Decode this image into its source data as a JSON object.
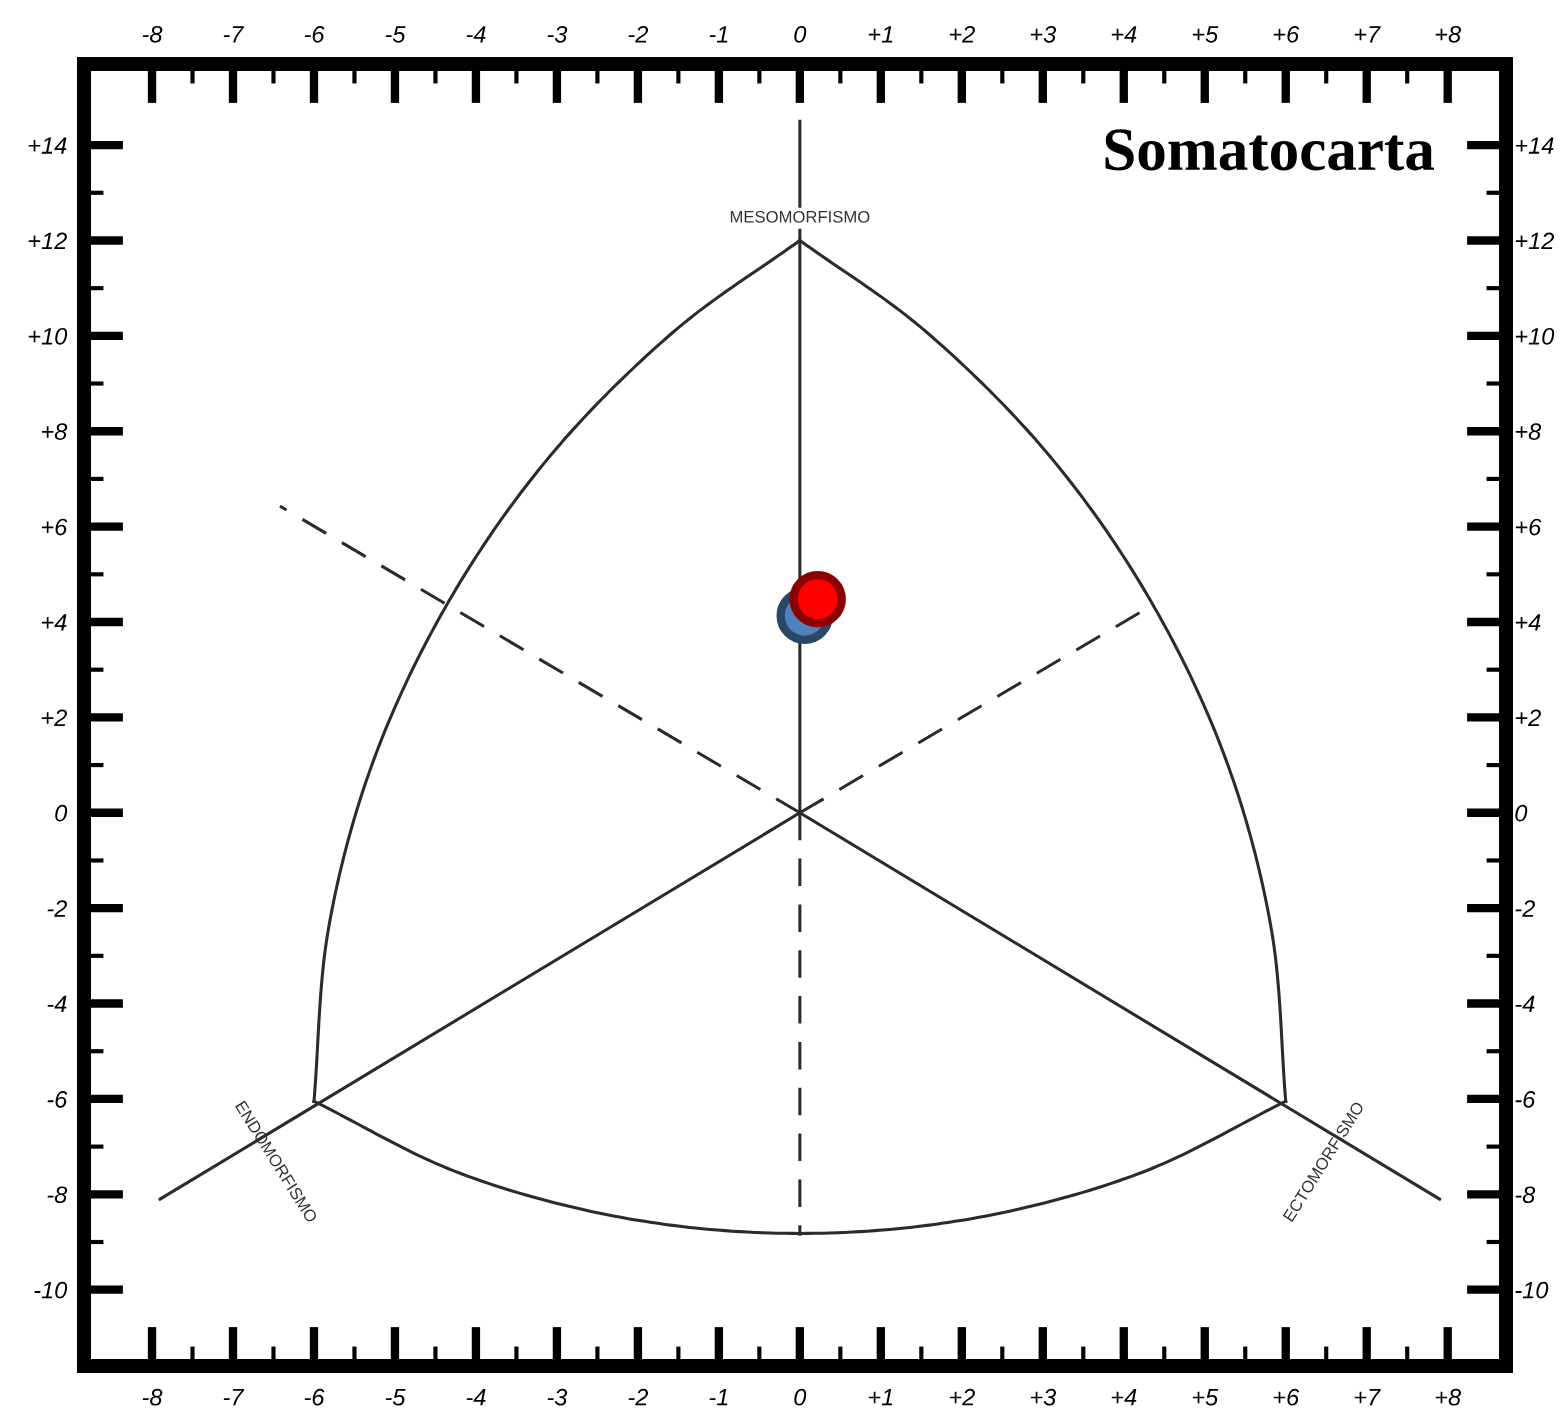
{
  "chart_data": {
    "type": "scatter",
    "title": "Somatocarta",
    "xlim": [
      -8.84,
      8.72
    ],
    "ylim": [
      -11.6,
      15.7
    ],
    "x2lim": [
      -8.84,
      8.72
    ],
    "y2lim": [
      -11.6,
      15.7
    ],
    "xticks": [
      {
        "value": -8,
        "label": "-8"
      },
      {
        "value": -7.5,
        "label": null
      },
      {
        "value": -7,
        "label": "-7"
      },
      {
        "value": -6.5,
        "label": null
      },
      {
        "value": -6,
        "label": "-6"
      },
      {
        "value": -5.5,
        "label": null
      },
      {
        "value": -5,
        "label": "-5"
      },
      {
        "value": -4.5,
        "label": null
      },
      {
        "value": -4,
        "label": "-4"
      },
      {
        "value": -3.5,
        "label": null
      },
      {
        "value": -3,
        "label": "-3"
      },
      {
        "value": -2.5,
        "label": null
      },
      {
        "value": -2,
        "label": "-2"
      },
      {
        "value": -1.5,
        "label": null
      },
      {
        "value": -1,
        "label": "-1"
      },
      {
        "value": -0.5,
        "label": null
      },
      0,
      {
        "value": 0.5,
        "label": null
      },
      {
        "value": 1,
        "label": "+1"
      },
      {
        "value": 1.5,
        "label": null
      },
      {
        "value": 2,
        "label": "+2"
      },
      {
        "value": 2.5,
        "label": null
      },
      {
        "value": 3,
        "label": "+3"
      },
      {
        "value": 3.5,
        "label": null
      },
      {
        "value": 4,
        "label": "+4"
      },
      {
        "value": 4.5,
        "label": null
      },
      {
        "value": 5,
        "label": "+5"
      },
      {
        "value": 5.5,
        "label": null
      },
      {
        "value": 6,
        "label": "+6"
      },
      {
        "value": 6.5,
        "label": null
      },
      {
        "value": 7,
        "label": "+7"
      },
      {
        "value": 7.5,
        "label": null
      },
      {
        "value": 8,
        "label": "+8"
      }
    ],
    "x2ticks": [
      {
        "value": -8,
        "label": "-8"
      },
      {
        "value": -7.5,
        "label": null
      },
      {
        "value": -7,
        "label": "-7"
      },
      {
        "value": -6.5,
        "label": null
      },
      {
        "value": -6,
        "label": "-6"
      },
      {
        "value": -5.5,
        "label": null
      },
      {
        "value": -5,
        "label": "-5"
      },
      {
        "value": -4.5,
        "label": null
      },
      {
        "value": -4,
        "label": "-4"
      },
      {
        "value": -3.5,
        "label": null
      },
      {
        "value": -3,
        "label": "-3"
      },
      {
        "value": -2.5,
        "label": null
      },
      {
        "value": -2,
        "label": "-2"
      },
      {
        "value": -1.5,
        "label": null
      },
      {
        "value": -1,
        "label": "-1"
      },
      {
        "value": -0.5,
        "label": null
      },
      0,
      {
        "value": 0.5,
        "label": null
      },
      {
        "value": 1,
        "label": "+1"
      },
      {
        "value": 1.5,
        "label": null
      },
      {
        "value": 2,
        "label": "+2"
      },
      {
        "value": 2.5,
        "label": null
      },
      {
        "value": 3,
        "label": "+3"
      },
      {
        "value": 3.5,
        "label": null
      },
      {
        "value": 4,
        "label": "+4"
      },
      {
        "value": 4.5,
        "label": null
      },
      {
        "value": 5,
        "label": "+5"
      },
      {
        "value": 5.5,
        "label": null
      },
      {
        "value": 6,
        "label": "+6"
      },
      {
        "value": 6.5,
        "label": null
      },
      {
        "value": 7,
        "label": "+7"
      },
      {
        "value": 7.5,
        "label": null
      },
      {
        "value": 8,
        "label": "+8"
      }
    ],
    "yticks": [
      {
        "value": -10,
        "label": "-10"
      },
      {
        "value": -9,
        "label": null
      },
      {
        "value": -8,
        "label": "-8"
      },
      {
        "value": -7,
        "label": null
      },
      {
        "value": -6,
        "label": "-6"
      },
      {
        "value": -5,
        "label": null
      },
      {
        "value": -4,
        "label": "-4"
      },
      {
        "value": -3,
        "label": null
      },
      {
        "value": -2,
        "label": "-2"
      },
      {
        "value": -1,
        "label": null
      },
      0,
      {
        "value": 1,
        "label": null
      },
      {
        "value": 2,
        "label": "+2"
      },
      {
        "value": 3,
        "label": null
      },
      {
        "value": 4,
        "label": "+4"
      },
      {
        "value": 5,
        "label": null
      },
      {
        "value": 6,
        "label": "+6"
      },
      {
        "value": 7,
        "label": null
      },
      {
        "value": 8,
        "label": "+8"
      },
      {
        "value": 9,
        "label": null
      },
      {
        "value": 10,
        "label": "+10"
      },
      {
        "value": 11,
        "label": null
      },
      {
        "value": 12,
        "label": "+12"
      },
      {
        "value": 13,
        "label": null
      },
      {
        "value": 14,
        "label": "+14"
      }
    ],
    "y2ticks": [
      {
        "value": -10,
        "label": "-10"
      },
      {
        "value": -9,
        "label": null
      },
      {
        "value": -8,
        "label": "-8"
      },
      {
        "value": -7,
        "label": null
      },
      {
        "value": -6,
        "label": "-6"
      },
      {
        "value": -5,
        "label": null
      },
      {
        "value": -4,
        "label": "-4"
      },
      {
        "value": -3,
        "label": null
      },
      {
        "value": -2,
        "label": "-2"
      },
      {
        "value": -1,
        "label": null
      },
      0,
      {
        "value": 1,
        "label": null
      },
      {
        "value": 2,
        "label": "+2"
      },
      {
        "value": 3,
        "label": null
      },
      {
        "value": 4,
        "label": "+4"
      },
      {
        "value": 5,
        "label": null
      },
      {
        "value": 6,
        "label": "+6"
      },
      {
        "value": 7,
        "label": null
      },
      {
        "value": 8,
        "label": "+8"
      },
      {
        "value": 9,
        "label": null
      },
      {
        "value": 10,
        "label": "+10"
      },
      {
        "value": 11,
        "label": null
      },
      {
        "value": 12,
        "label": "+12"
      },
      {
        "value": 13,
        "label": null
      },
      {
        "value": 14,
        "label": "+14"
      }
    ],
    "grid": false,
    "legend": false,
    "annotations": [
      {
        "text": "MESOMORFISMO",
        "x": 0,
        "y": 12
      },
      {
        "text": "ENDOMORFISMO",
        "x": -6,
        "y": -6.05
      },
      {
        "text": "ECTOMORFISMO",
        "x": 6,
        "y": -6.05
      }
    ],
    "series": [
      {
        "type": "line",
        "line_style": "solid",
        "color": "#2b2b2b",
        "x": [
          0,
          0
        ],
        "values": [
          14.5,
          0
        ]
      },
      {
        "type": "line",
        "line_style": "dashed",
        "color": "#2b2b2b",
        "x": [
          0,
          0
        ],
        "values": [
          0,
          -8.87
        ]
      },
      {
        "type": "line",
        "line_style": "solid",
        "color": "#2b2b2b",
        "x": [
          0,
          -7.9
        ],
        "values": [
          0,
          -8.1
        ]
      },
      {
        "type": "line",
        "line_style": "solid",
        "color": "#2b2b2b",
        "x": [
          0,
          7.9
        ],
        "values": [
          0,
          -8.1
        ]
      },
      {
        "type": "line",
        "line_style": "dashed",
        "color": "#2b2b2b",
        "x": [
          0,
          -6.42
        ],
        "values": [
          0,
          6.43
        ]
      },
      {
        "type": "line",
        "line_style": "dashed",
        "color": "#2b2b2b",
        "x": [
          0,
          4.37
        ],
        "values": [
          0,
          4.37
        ]
      },
      {
        "type": "line",
        "line_style": "solid",
        "color": "#2b2b2b",
        "x": [
          0,
          1.57,
          3.09,
          4.33,
          5.26,
          5.82,
          6
        ],
        "values": [
          12,
          10.07,
          7.47,
          4.45,
          1.12,
          -2.42,
          -6.05
        ]
      },
      {
        "type": "line",
        "line_style": "solid",
        "color": "#2b2b2b",
        "x": [
          0,
          -1.57,
          -3.09,
          -4.33,
          -5.26,
          -5.82,
          -6
        ],
        "values": [
          12,
          10.07,
          7.47,
          4.45,
          1.12,
          -2.42,
          -6.05
        ]
      },
      {
        "type": "line",
        "line_style": "solid",
        "color": "#2b2b2b",
        "x": [
          -6,
          -4.18,
          -2.12,
          0,
          2.12,
          4.18,
          6
        ],
        "values": [
          -6.05,
          -7.57,
          -8.51,
          -8.82,
          -8.51,
          -7.57,
          -6.05
        ]
      },
      {
        "marker": "circle",
        "color": "#4f81bd",
        "x": [
          0.06
        ],
        "values": [
          4.13
        ]
      },
      {
        "marker": "circle",
        "color": "#ff0000",
        "x": [
          0.22
        ],
        "values": [
          4.48
        ]
      }
    ]
  }
}
